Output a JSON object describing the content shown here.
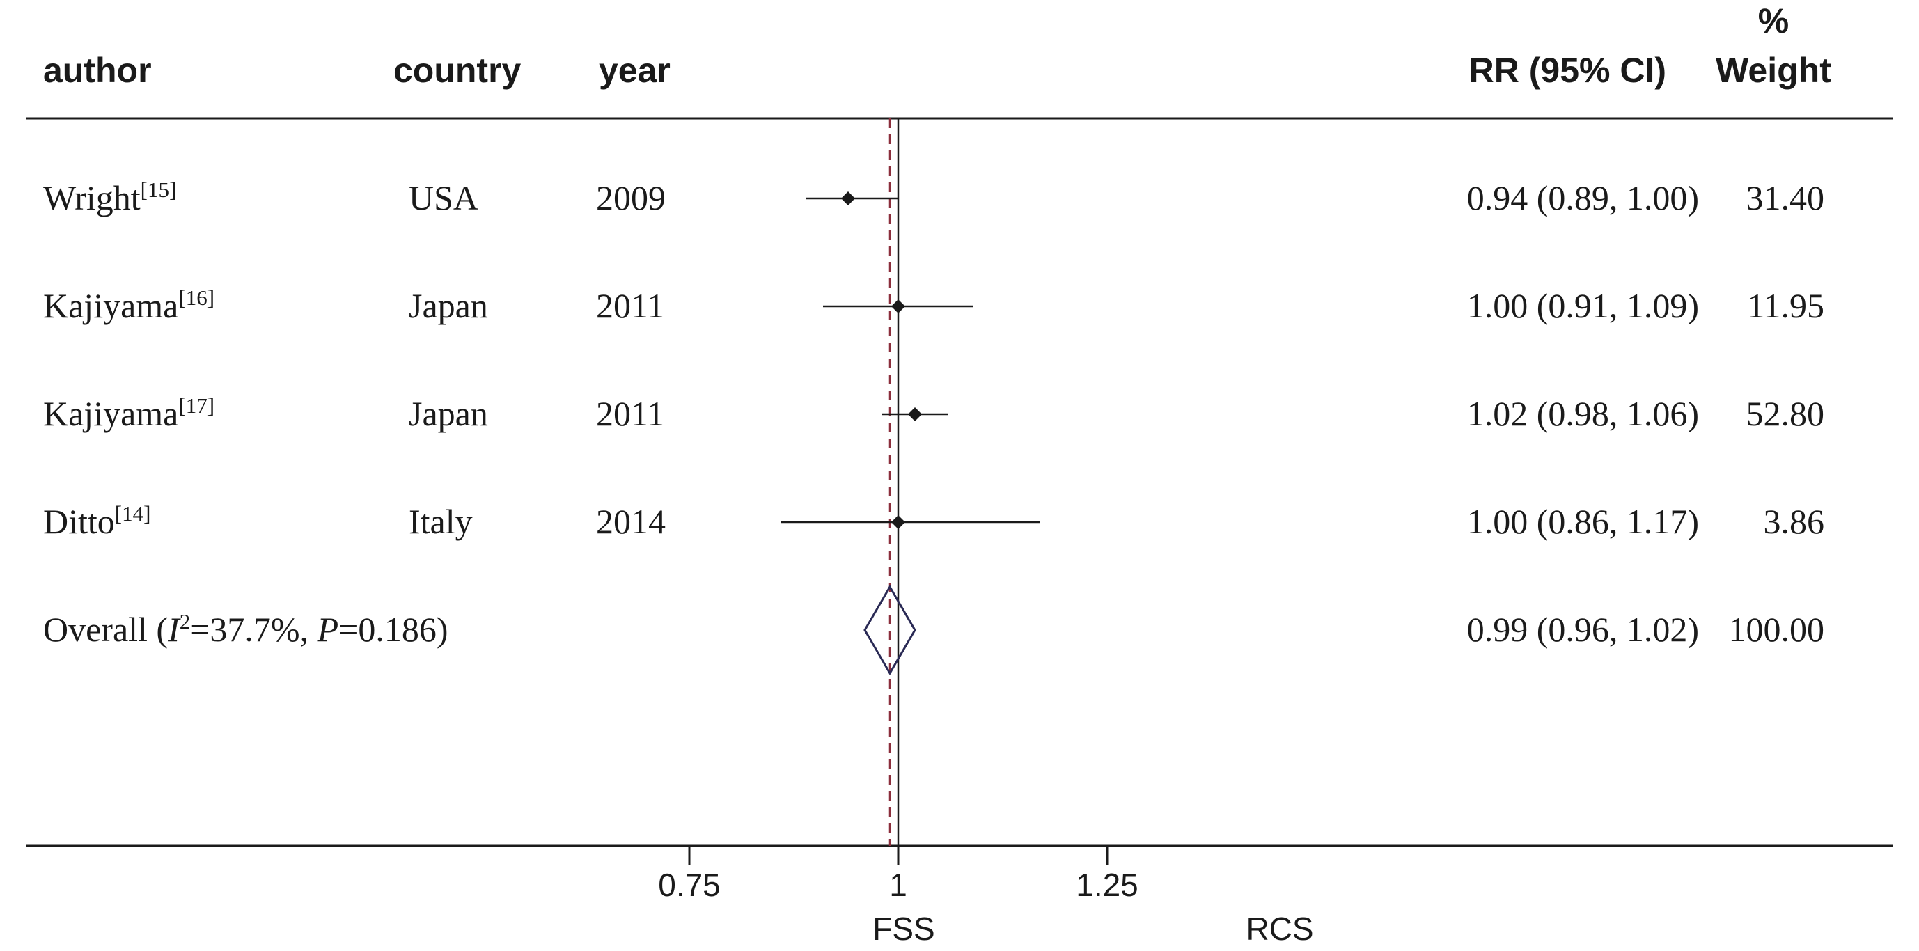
{
  "chart_data": {
    "type": "forest",
    "columns": {
      "author": "author",
      "country": "country",
      "year": "year",
      "rr": "RR (95% CI)",
      "weight_top": "%",
      "weight_bottom": "Weight"
    },
    "studies": [
      {
        "author": "Wright",
        "ref": "[15]",
        "country": "USA",
        "year": "2009",
        "rr": 0.94,
        "lo": 0.89,
        "hi": 1.0,
        "rr_text": "0.94 (0.89, 1.00)",
        "weight": "31.40"
      },
      {
        "author": "Kajiyama",
        "ref": "[16]",
        "country": "Japan",
        "year": "2011",
        "rr": 1.0,
        "lo": 0.91,
        "hi": 1.09,
        "rr_text": "1.00 (0.91, 1.09)",
        "weight": "11.95"
      },
      {
        "author": "Kajiyama",
        "ref": "[17]",
        "country": "Japan",
        "year": "2011",
        "rr": 1.02,
        "lo": 0.98,
        "hi": 1.06,
        "rr_text": "1.02 (0.98, 1.06)",
        "weight": "52.80"
      },
      {
        "author": "Ditto",
        "ref": "[14]",
        "country": "Italy",
        "year": "2014",
        "rr": 1.0,
        "lo": 0.86,
        "hi": 1.17,
        "rr_text": "1.00 (0.86, 1.17)",
        "weight": "3.86"
      }
    ],
    "overall": {
      "label_prefix": "Overall  (",
      "i_symbol": "I",
      "i_sup": "2",
      "i_value": "=37.7%, ",
      "p_symbol": "P",
      "p_value": "=0.186)",
      "rr": 0.99,
      "lo": 0.96,
      "hi": 1.02,
      "rr_text": "0.99 (0.96, 1.02)",
      "weight": "100.00"
    },
    "x_ticks": [
      {
        "value": 0.75,
        "label": "0.75"
      },
      {
        "value": 1,
        "label": "1"
      },
      {
        "value": 1.25,
        "label": "1.25"
      }
    ],
    "null_line": 1,
    "left_label": "FSS",
    "right_label": "RCS",
    "colors": {
      "ink": "#1a1a1a",
      "diamond": "#2a2a55",
      "overall_line": "#8b2e3c"
    }
  }
}
